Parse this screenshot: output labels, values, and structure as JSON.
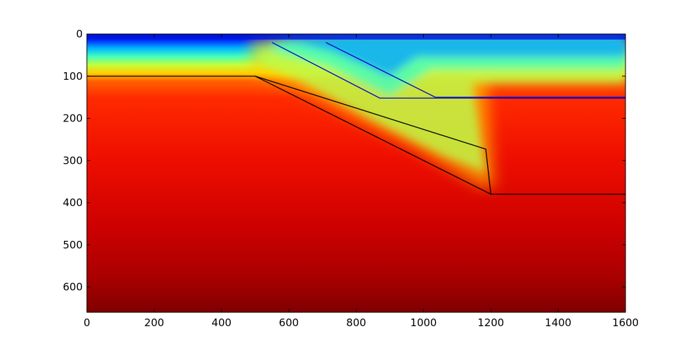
{
  "chart_data": {
    "type": "heatmap",
    "title": "",
    "xlabel": "",
    "ylabel": "",
    "xlim": [
      0,
      1600
    ],
    "ylim": [
      660,
      0
    ],
    "y_inverted": true,
    "colormap": "jet",
    "grid": false,
    "x_ticks": [
      0,
      200,
      400,
      600,
      800,
      1000,
      1200,
      1400,
      1600
    ],
    "y_ticks": [
      0,
      100,
      200,
      300,
      400,
      500,
      600
    ],
    "field_description": "temperature-like field increasing with depth; hot zone dips along subducting slab",
    "lines": [
      {
        "name": "",
        "color": "#000000",
        "points": [
          [
            0,
            100
          ],
          [
            500,
            100
          ],
          [
            1200,
            380
          ],
          [
            1600,
            380
          ]
        ]
      },
      {
        "name": "",
        "color": "#000000",
        "points": [
          [
            500,
            100
          ],
          [
            1185,
            273
          ],
          [
            1200,
            380
          ]
        ]
      },
      {
        "name": "",
        "color": "#0000cc",
        "points": [
          [
            550,
            20
          ],
          [
            870,
            152
          ],
          [
            1600,
            152
          ]
        ]
      },
      {
        "name": "",
        "color": "#0000cc",
        "points": [
          [
            710,
            20
          ],
          [
            1035,
            150
          ],
          [
            1600,
            150
          ]
        ]
      }
    ]
  }
}
